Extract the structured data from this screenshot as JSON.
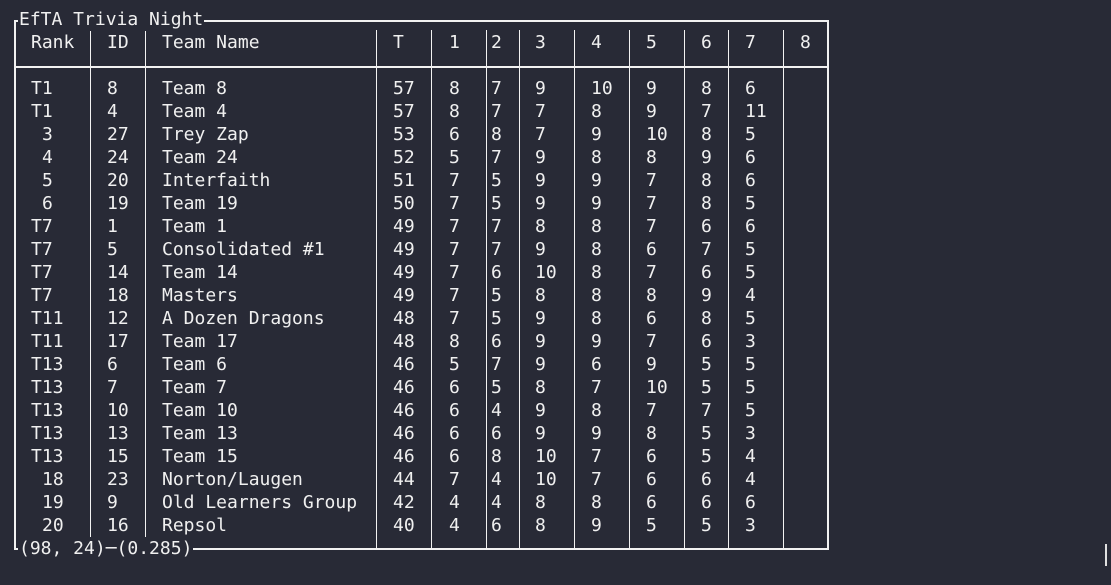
{
  "window": {
    "title": "EfTA Trivia Night",
    "status_dims": "(98, 24)",
    "status_time": "(0.285)"
  },
  "colors": {
    "background": "#282a36",
    "text": "#f0f0f0",
    "border": "#f2f2f2"
  },
  "columns": [
    "Rank",
    "ID",
    "Team Name",
    "T",
    "1",
    "2",
    "3",
    "4",
    "5",
    "6",
    "7",
    "8"
  ],
  "rows": [
    [
      "T1",
      "8",
      "Team 8",
      "57",
      "8",
      "7",
      "9",
      "10",
      "9",
      "8",
      "6",
      ""
    ],
    [
      "T1",
      "4",
      "Team 4",
      "57",
      "8",
      "7",
      "7",
      "8",
      "9",
      "7",
      "11",
      ""
    ],
    [
      "3",
      "27",
      "Trey Zap",
      "53",
      "6",
      "8",
      "7",
      "9",
      "10",
      "8",
      "5",
      ""
    ],
    [
      "4",
      "24",
      "Team 24",
      "52",
      "5",
      "7",
      "9",
      "8",
      "8",
      "9",
      "6",
      ""
    ],
    [
      "5",
      "20",
      "Interfaith",
      "51",
      "7",
      "5",
      "9",
      "9",
      "7",
      "8",
      "6",
      ""
    ],
    [
      "6",
      "19",
      "Team 19",
      "50",
      "7",
      "5",
      "9",
      "9",
      "7",
      "8",
      "5",
      ""
    ],
    [
      "T7",
      "1",
      "Team 1",
      "49",
      "7",
      "7",
      "8",
      "8",
      "7",
      "6",
      "6",
      ""
    ],
    [
      "T7",
      "5",
      "Consolidated #1",
      "49",
      "7",
      "7",
      "9",
      "8",
      "6",
      "7",
      "5",
      ""
    ],
    [
      "T7",
      "14",
      "Team 14",
      "49",
      "7",
      "6",
      "10",
      "8",
      "7",
      "6",
      "5",
      ""
    ],
    [
      "T7",
      "18",
      "Masters",
      "49",
      "7",
      "5",
      "8",
      "8",
      "8",
      "9",
      "4",
      ""
    ],
    [
      "T11",
      "12",
      "A Dozen Dragons",
      "48",
      "7",
      "5",
      "9",
      "8",
      "6",
      "8",
      "5",
      ""
    ],
    [
      "T11",
      "17",
      "Team 17",
      "48",
      "8",
      "6",
      "9",
      "9",
      "7",
      "6",
      "3",
      ""
    ],
    [
      "T13",
      "6",
      "Team 6",
      "46",
      "5",
      "7",
      "9",
      "6",
      "9",
      "5",
      "5",
      ""
    ],
    [
      "T13",
      "7",
      "Team 7",
      "46",
      "6",
      "5",
      "8",
      "7",
      "10",
      "5",
      "5",
      ""
    ],
    [
      "T13",
      "10",
      "Team 10",
      "46",
      "6",
      "4",
      "9",
      "8",
      "7",
      "7",
      "5",
      ""
    ],
    [
      "T13",
      "13",
      "Team 13",
      "46",
      "6",
      "6",
      "9",
      "9",
      "8",
      "5",
      "3",
      ""
    ],
    [
      "T13",
      "15",
      "Team 15",
      "46",
      "6",
      "8",
      "10",
      "7",
      "6",
      "5",
      "4",
      ""
    ],
    [
      "18",
      "23",
      "Norton/Laugen",
      "44",
      "7",
      "4",
      "10",
      "7",
      "6",
      "6",
      "4",
      ""
    ],
    [
      "19",
      "9",
      "Old Learners Group",
      "42",
      "4",
      "4",
      "8",
      "8",
      "6",
      "6",
      "6",
      ""
    ],
    [
      "20",
      "16",
      "Repsol",
      "40",
      "4",
      "6",
      "8",
      "9",
      "5",
      "5",
      "3",
      ""
    ]
  ]
}
